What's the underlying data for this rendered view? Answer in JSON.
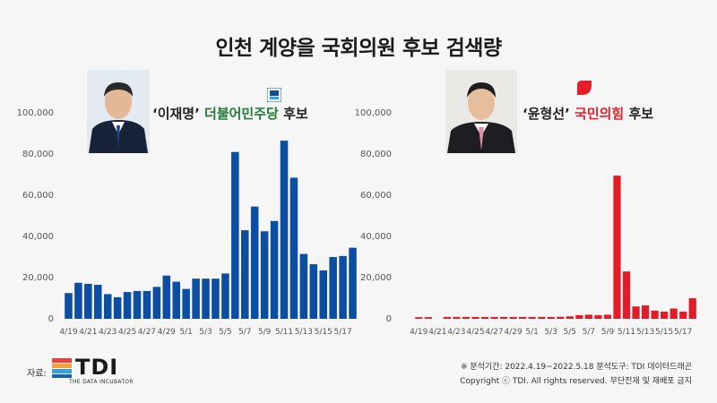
{
  "title": "인천 계양을 국회의원 후보 검색량",
  "colors": {
    "left_bar": "#0b4ea2",
    "right_bar": "#e21d2a",
    "dp_green": "#2a8a3a",
    "ppp_red": "#e61e2b"
  },
  "candidates": {
    "left": {
      "name": "‘이재명’",
      "party": "더불어민주당",
      "suffix": "후보",
      "photo_icon": "candidate-photo"
    },
    "right": {
      "name": "‘윤형선’",
      "party": "국민의힘",
      "suffix": "후보",
      "photo_icon": "candidate-photo"
    }
  },
  "footer": {
    "source_label": "자료:",
    "brand": "TDI",
    "brand_sub": "THE DATA INCUBATOR",
    "note": "※ 분석기간: 2022.4.19~2022.5.18   분석도구: TDI 데이터드래곤",
    "copyright": "Copyright ⓒ TDI. All rights reserved. 무단전재 및 재배포 금지"
  },
  "chart_data": [
    {
      "type": "bar",
      "series_name": "이재명",
      "categories": [
        "4/19",
        "4/20",
        "4/21",
        "4/22",
        "4/23",
        "4/24",
        "4/25",
        "4/26",
        "4/27",
        "4/28",
        "4/29",
        "4/30",
        "5/1",
        "5/2",
        "5/3",
        "5/4",
        "5/5",
        "5/6",
        "5/7",
        "5/8",
        "5/9",
        "5/10",
        "5/11",
        "5/12",
        "5/13",
        "5/14",
        "5/15",
        "5/16",
        "5/17",
        "5/18"
      ],
      "tick_labels": [
        "4/19",
        "4/21",
        "4/23",
        "4/25",
        "4/27",
        "4/29",
        "5/1",
        "5/3",
        "5/5",
        "5/7",
        "5/9",
        "5/11",
        "5/13",
        "5/15",
        "5/17"
      ],
      "values": [
        12500,
        17500,
        17000,
        16500,
        12000,
        10500,
        13000,
        13500,
        13500,
        15500,
        21000,
        18000,
        14500,
        19500,
        19500,
        19500,
        22000,
        81000,
        43000,
        54500,
        42500,
        47500,
        86500,
        68500,
        31500,
        26500,
        23500,
        30000,
        30500,
        34500
      ],
      "yticks": [
        0,
        20000,
        40000,
        60000,
        80000,
        100000
      ],
      "ytick_labels": [
        "0",
        "20,000",
        "40,000",
        "60,000",
        "80,000",
        "100,000"
      ],
      "ylim": [
        0,
        100000
      ]
    },
    {
      "type": "bar",
      "series_name": "윤형선",
      "categories": [
        "4/19",
        "4/20",
        "4/21",
        "4/22",
        "4/23",
        "4/24",
        "4/25",
        "4/26",
        "4/27",
        "4/28",
        "4/29",
        "4/30",
        "5/1",
        "5/2",
        "5/3",
        "5/4",
        "5/5",
        "5/6",
        "5/7",
        "5/8",
        "5/9",
        "5/10",
        "5/11",
        "5/12",
        "5/13",
        "5/14",
        "5/15",
        "5/16",
        "5/17",
        "5/18"
      ],
      "tick_labels": [
        "4/19",
        "4/21",
        "4/23",
        "4/25",
        "4/27",
        "4/29",
        "5/1",
        "5/3",
        "5/5",
        "5/7",
        "5/9",
        "5/11",
        "5/13",
        "5/15",
        "5/17"
      ],
      "values": [
        800,
        800,
        0,
        900,
        900,
        900,
        900,
        900,
        900,
        900,
        900,
        900,
        900,
        900,
        900,
        1000,
        1200,
        1800,
        2000,
        1800,
        2000,
        69500,
        23000,
        6000,
        6500,
        4000,
        3500,
        5000,
        3500,
        10000
      ],
      "yticks": [
        0,
        20000,
        40000,
        60000,
        80000,
        100000
      ],
      "ytick_labels": [
        "0",
        "20,000",
        "40,000",
        "60,000",
        "80,000",
        "100,000"
      ],
      "ylim": [
        0,
        100000
      ]
    }
  ]
}
